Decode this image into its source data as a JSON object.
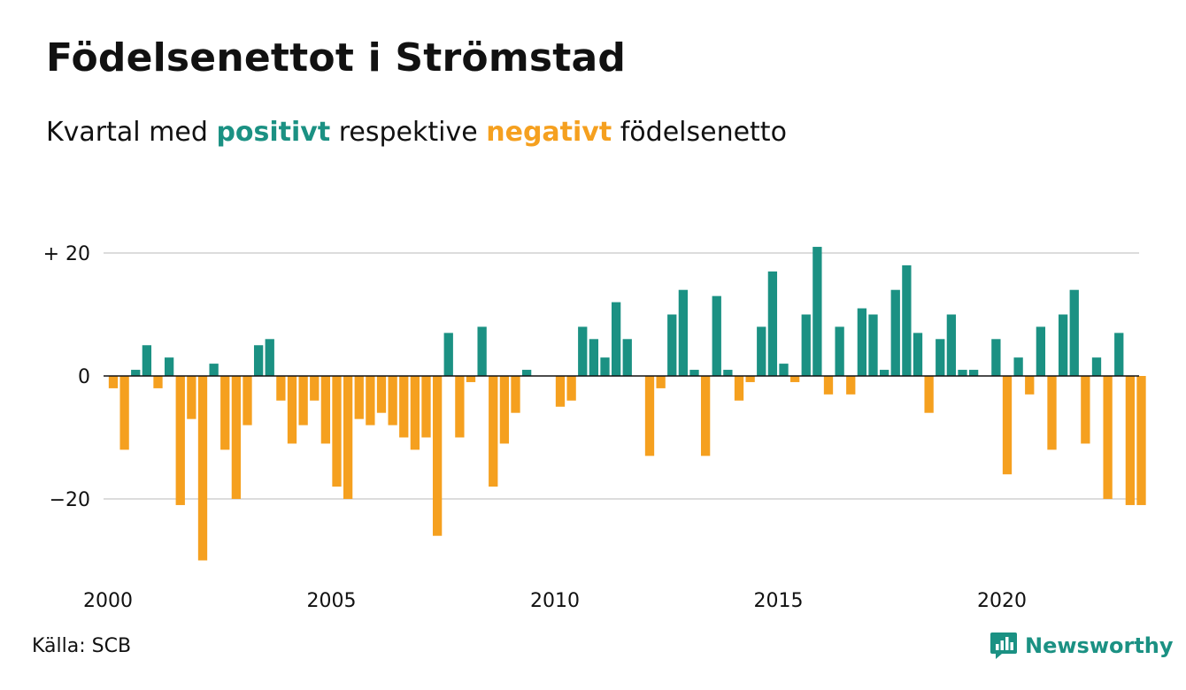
{
  "title": "Födelsenettot i Strömstad",
  "subtitle": {
    "before": "Kvartal med",
    "positive_word": "positivt",
    "middle": "respektive",
    "negative_word": "negativt",
    "after": "födelsenetto"
  },
  "source": "Källa: SCB",
  "brand": "Newsworthy",
  "colors": {
    "positive": "#1b9183",
    "negative": "#f5a01f",
    "grid": "#dcdcdc",
    "zero_line": "#111111"
  },
  "chart_data": {
    "type": "bar",
    "x_unit": "year-quarter",
    "x_start": "2000 Q1",
    "xlim": [
      2000,
      2023
    ],
    "ylim": [
      -30,
      22
    ],
    "x_ticks": [
      "2000",
      "2005",
      "2010",
      "2015",
      "2020"
    ],
    "y_ticks": [
      {
        "value": 20,
        "label": "+ 20"
      },
      {
        "value": 0,
        "label": "0"
      },
      {
        "value": -20,
        "label": "−20"
      }
    ],
    "grid": true,
    "values": [
      -2,
      -12,
      1,
      5,
      -2,
      3,
      -21,
      -7,
      -30,
      2,
      -12,
      -20,
      -8,
      5,
      6,
      -4,
      -11,
      -8,
      -4,
      -11,
      -18,
      -20,
      -7,
      -8,
      -6,
      -8,
      -10,
      -12,
      -10,
      -26,
      7,
      -10,
      -1,
      8,
      -18,
      -11,
      -6,
      1,
      0,
      0,
      -5,
      -4,
      8,
      6,
      3,
      12,
      6,
      0,
      -13,
      -2,
      10,
      14,
      1,
      -13,
      13,
      1,
      -4,
      -1,
      8,
      17,
      2,
      -1,
      10,
      21,
      -3,
      8,
      -3,
      11,
      10,
      1,
      14,
      18,
      7,
      -6,
      6,
      10,
      1,
      1,
      0,
      6,
      -16,
      3,
      -3,
      8,
      -12,
      10,
      14,
      -11,
      3,
      -20,
      7,
      -21,
      -21
    ]
  }
}
